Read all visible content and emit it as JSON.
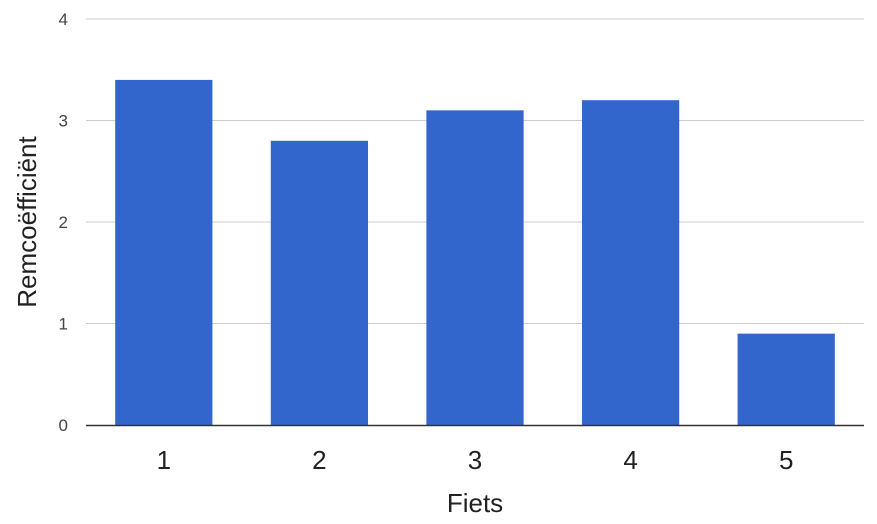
{
  "chart_data": {
    "type": "bar",
    "title": "",
    "xlabel": "Fiets",
    "ylabel": "Remcoëfficiënt",
    "categories": [
      "1",
      "2",
      "3",
      "4",
      "5"
    ],
    "values": [
      3.4,
      2.8,
      3.1,
      3.2,
      0.9
    ],
    "ylim": [
      0,
      4
    ],
    "yticks": [
      "0",
      "1",
      "2",
      "3",
      "4"
    ],
    "grid": true,
    "legend": "none",
    "bar_color": "#3366cc",
    "grid_color": "#cccccc",
    "axis_color": "#333333"
  }
}
